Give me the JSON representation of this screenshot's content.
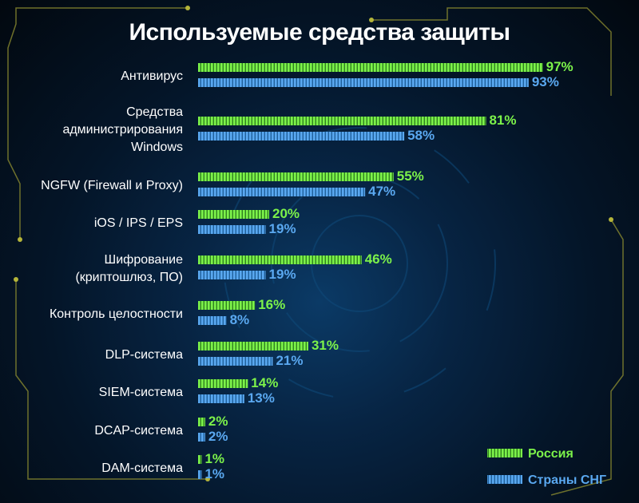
{
  "chart_data": {
    "type": "bar",
    "orientation": "horizontal",
    "title": "Используемые средства защиты",
    "categories": [
      [
        "Антивирус"
      ],
      [
        "Средства",
        "администрирования",
        "Windows"
      ],
      [
        "NGFW (Firewall и Proxy)"
      ],
      [
        "iOS / IPS / EPS"
      ],
      [
        "Шифрование",
        "(криптошлюз, ПО)"
      ],
      [
        "Контроль целостности"
      ],
      [
        "DLP-система"
      ],
      [
        "SIEM-система"
      ],
      [
        "DCAP-система"
      ],
      [
        "DAM-система"
      ]
    ],
    "series": [
      {
        "name": "Россия",
        "color": "#7cf24a",
        "values": [
          97,
          81,
          55,
          20,
          46,
          16,
          31,
          14,
          2,
          1
        ]
      },
      {
        "name": "Страны СНГ",
        "color": "#5aa8f0",
        "values": [
          93,
          58,
          47,
          19,
          19,
          8,
          21,
          13,
          2,
          1
        ]
      }
    ],
    "value_suffix": "%",
    "xlim": [
      0,
      100
    ],
    "legend": "bottom-right"
  }
}
